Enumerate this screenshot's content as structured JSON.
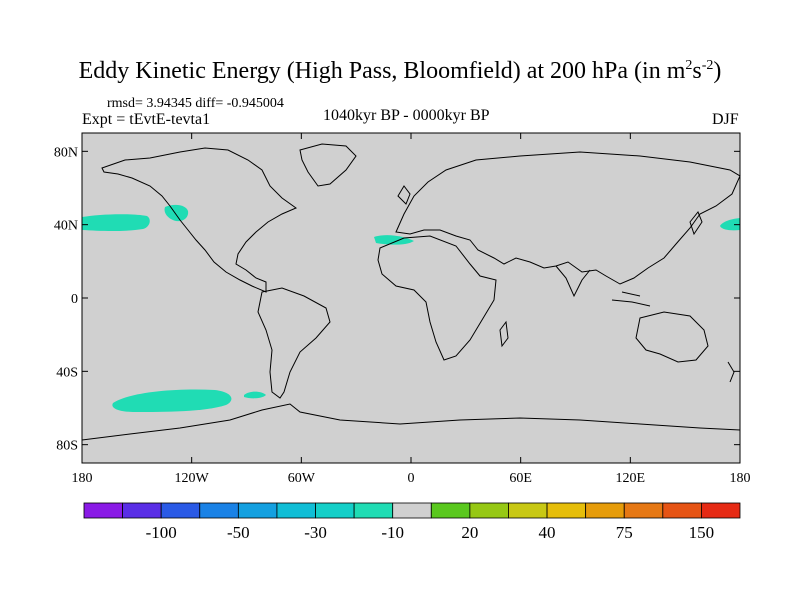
{
  "title": {
    "main": "Eddy Kinetic Energy (High Pass, Bloomfield) at 200 hPa (in m",
    "sup1": "2",
    "mid": "s",
    "sup2": "-2",
    "end": ")"
  },
  "stats": {
    "rmsd_line": "rmsd= 3.94345 diff= -0.945004"
  },
  "experiment": "Expt = tEvtE-tevta1",
  "period": "1040kyr BP - 0000kyr BP",
  "season": "DJF",
  "axes": {
    "lat_labels": [
      "80N",
      "40N",
      "0",
      "40S",
      "80S"
    ],
    "lon_labels": [
      "180",
      "120W",
      "60W",
      "0",
      "60E",
      "120E",
      "180"
    ]
  },
  "colorbar": {
    "labels": [
      "-100",
      "-50",
      "-30",
      "-10",
      "20",
      "40",
      "75",
      "150"
    ],
    "colors": [
      "#8a1ae6",
      "#5a2ee6",
      "#2a5ae6",
      "#1a82e6",
      "#14a0e0",
      "#10bed6",
      "#14cfc8",
      "#20dcb4",
      "#d0d0d0",
      "#5ac81e",
      "#96c814",
      "#c8c814",
      "#e6be0a",
      "#e69c0a",
      "#e67814",
      "#e65414",
      "#e62a14"
    ]
  },
  "colors": {
    "land_ocean_fill": "#d0d0d0",
    "negative_anomaly": "#20dcb4",
    "coast": "#000000"
  }
}
